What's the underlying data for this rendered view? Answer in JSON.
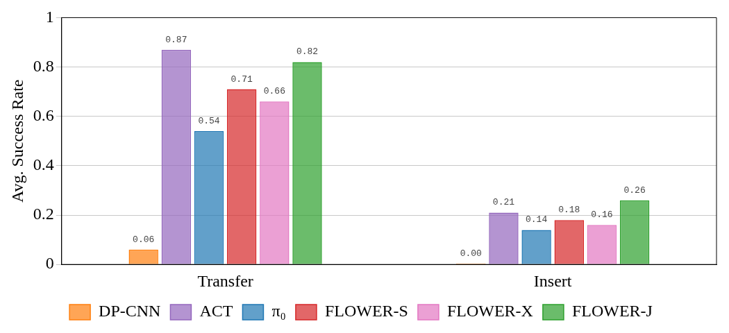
{
  "chart_data": {
    "type": "bar",
    "ylabel": "Avg. Success Rate",
    "categories": [
      "Transfer",
      "Insert"
    ],
    "ylim": [
      0,
      1
    ],
    "yticks": [
      0,
      0.2,
      0.4,
      0.6,
      0.8,
      1
    ],
    "grid": "y",
    "legend": "bottom",
    "series": [
      {
        "name": "DP-CNN",
        "color": "#ff7f0e",
        "values": [
          0.06,
          0.004
        ],
        "value_labels": [
          "0.06",
          "0.00"
        ]
      },
      {
        "name": "ACT",
        "color": "#9467bd",
        "values": [
          0.87,
          0.21
        ],
        "value_labels": [
          "0.87",
          "0.21"
        ]
      },
      {
        "name": "π₀",
        "color": "#1f77b4",
        "values": [
          0.54,
          0.14
        ],
        "value_labels": [
          "0.54",
          "0.14"
        ]
      },
      {
        "name": "FLOWER-S",
        "color": "#d62728",
        "values": [
          0.71,
          0.18
        ],
        "value_labels": [
          "0.71",
          "0.18"
        ]
      },
      {
        "name": "FLOWER-X",
        "color": "#e377c2",
        "values": [
          0.66,
          0.16
        ],
        "value_labels": [
          "0.66",
          "0.16"
        ]
      },
      {
        "name": "FLOWER-J",
        "color": "#2ca02c",
        "values": [
          0.82,
          0.26
        ],
        "value_labels": [
          "0.82",
          "0.26"
        ]
      }
    ]
  }
}
